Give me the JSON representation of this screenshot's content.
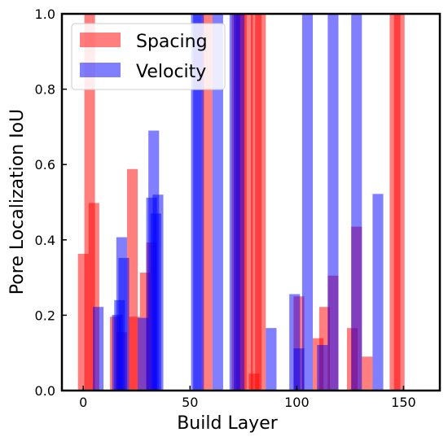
{
  "chart_data": {
    "type": "bar",
    "xlabel": "Build Layer",
    "ylabel": "Pore Localization IoU",
    "xlim": [
      -10,
      167
    ],
    "ylim": [
      0,
      1
    ],
    "xticks": [
      0,
      50,
      100,
      150
    ],
    "yticks": [
      0.0,
      0.2,
      0.4,
      0.6,
      0.8,
      1.0
    ],
    "xtick_labels": [
      "0",
      "50",
      "100",
      "150"
    ],
    "ytick_labels": [
      "0.0",
      "0.2",
      "0.4",
      "0.6",
      "0.8",
      "1.0"
    ],
    "grid": false,
    "legend_position": "top-left",
    "bar_width": 5,
    "series": [
      {
        "name": "Spacing",
        "color": "#ff0000",
        "opacity": 0.5,
        "x": [
          0,
          3,
          5,
          15,
          18,
          23,
          24,
          29,
          32,
          58,
          72,
          74,
          77,
          80,
          81,
          83,
          101,
          110,
          113,
          117,
          126,
          128,
          133,
          146,
          148,
          8
        ],
        "values": [
          0.363,
          1.0,
          0.498,
          0.196,
          0.155,
          0.588,
          0.196,
          0.313,
          0.393,
          1.0,
          1.0,
          1.0,
          1.0,
          0.045,
          1.0,
          1.0,
          0.25,
          0.139,
          0.222,
          0.305,
          0.166,
          0.435,
          0.09,
          1.0,
          1.0,
          0.0
        ]
      },
      {
        "name": "Velocity",
        "color": "#0000ff",
        "opacity": 0.5,
        "x": [
          7,
          16,
          17,
          18,
          19,
          28,
          32,
          33,
          34,
          35,
          53,
          54,
          63,
          71,
          73,
          88,
          99,
          101,
          105,
          112,
          117,
          128,
          138
        ],
        "values": [
          0.222,
          0.201,
          0.24,
          0.407,
          0.352,
          0.193,
          0.512,
          0.69,
          0.47,
          0.52,
          1.0,
          1.0,
          1.0,
          1.0,
          1.0,
          0.166,
          0.256,
          0.112,
          1.0,
          0.121,
          1.0,
          1.0,
          0.522
        ]
      }
    ]
  }
}
